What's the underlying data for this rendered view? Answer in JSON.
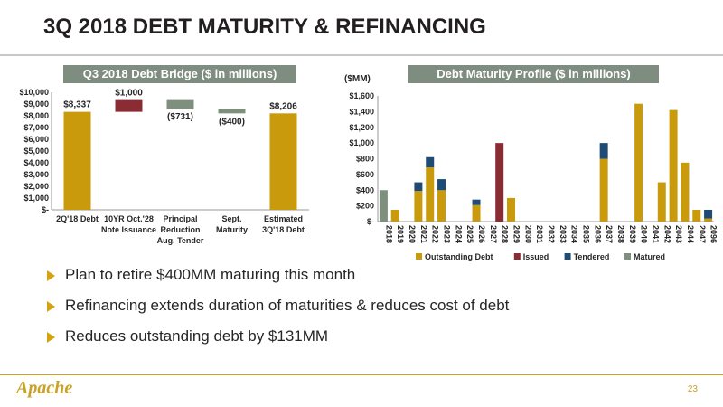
{
  "title": "3Q 2018 DEBT MATURITY & REFINANCING",
  "logo": "Apache",
  "page_number": "23",
  "bullets": [
    "Plan to retire $400MM maturing this month",
    "Refinancing extends duration of maturities & reduces cost of debt",
    "Reduces outstanding debt by $131MM"
  ],
  "chart_data": [
    {
      "type": "bar",
      "subtype": "waterfall",
      "title": "Q3 2018 Debt Bridge ($ in millions)",
      "categories": [
        "2Q'18 Debt",
        "10YR Oct.'28 Note Issuance",
        "Principal Reduction Aug. Tender",
        "Sept. Maturity",
        "Estimated 3Q'18 Debt"
      ],
      "category_lines": [
        [
          "2Q'18 Debt"
        ],
        [
          "10YR Oct.'28",
          "Note Issuance"
        ],
        [
          "Principal",
          "Reduction",
          "Aug. Tender"
        ],
        [
          "Sept.",
          "Maturity"
        ],
        [
          "Estimated",
          "3Q'18 Debt"
        ]
      ],
      "values": [
        8337,
        1000,
        -731,
        -400,
        8206
      ],
      "bar_kind": [
        "total",
        "increase",
        "decrease",
        "decrease",
        "total"
      ],
      "data_labels": [
        "$8,337",
        "$1,000",
        "($731)",
        "($400)",
        "$8,206"
      ],
      "colors": {
        "total": "#c99a0c",
        "increase": "#8b2c35",
        "decrease": "#7e907d"
      },
      "ylim": [
        0,
        10000
      ],
      "yticks": [
        0,
        1000,
        2000,
        3000,
        4000,
        5000,
        6000,
        7000,
        8000,
        9000,
        10000
      ],
      "ytick_labels": [
        "$-",
        "$1,000",
        "$2,000",
        "$3,000",
        "$4,000",
        "$5,000",
        "$6,000",
        "$7,000",
        "$8,000",
        "$9,000",
        "$10,000"
      ]
    },
    {
      "type": "bar",
      "stacked": true,
      "title": "Debt Maturity Profile ($ in millions)",
      "ylabel": "($MM)",
      "categories": [
        "2018",
        "2019",
        "2020",
        "2021",
        "2022",
        "2023",
        "2024",
        "2025",
        "2026",
        "2027",
        "2028",
        "2029",
        "2030",
        "2031",
        "2032",
        "2033",
        "2034",
        "2035",
        "2036",
        "2037",
        "2038",
        "2039",
        "2040",
        "2041",
        "2042",
        "2043",
        "2044",
        "2047",
        "2096"
      ],
      "series": [
        {
          "name": "Outstanding Debt",
          "color": "#c99a0c",
          "values": [
            0,
            150,
            0,
            390,
            690,
            400,
            0,
            0,
            210,
            0,
            0,
            300,
            0,
            0,
            0,
            0,
            0,
            0,
            0,
            800,
            0,
            0,
            1500,
            0,
            500,
            1420,
            750,
            150,
            40
          ]
        },
        {
          "name": "Issued",
          "color": "#8b2c35",
          "values": [
            0,
            0,
            0,
            0,
            0,
            0,
            0,
            0,
            0,
            0,
            1000,
            0,
            0,
            0,
            0,
            0,
            0,
            0,
            0,
            0,
            0,
            0,
            0,
            0,
            0,
            0,
            0,
            0,
            0
          ]
        },
        {
          "name": "Tendered",
          "color": "#1e4c77",
          "values": [
            0,
            0,
            0,
            110,
            130,
            140,
            0,
            0,
            70,
            0,
            0,
            0,
            0,
            0,
            0,
            0,
            0,
            0,
            0,
            200,
            0,
            0,
            0,
            0,
            0,
            0,
            0,
            0,
            110
          ]
        },
        {
          "name": "Matured",
          "color": "#7e907d",
          "values": [
            400,
            0,
            0,
            0,
            0,
            0,
            0,
            0,
            0,
            0,
            0,
            0,
            0,
            0,
            0,
            0,
            0,
            0,
            0,
            0,
            0,
            0,
            0,
            0,
            0,
            0,
            0,
            0,
            0
          ]
        }
      ],
      "ylim": [
        0,
        1600
      ],
      "yticks": [
        0,
        200,
        400,
        600,
        800,
        1000,
        1200,
        1400,
        1600
      ],
      "ytick_labels": [
        "$-",
        "$200",
        "$400",
        "$600",
        "$800",
        "$1,000",
        "$1,200",
        "$1,400",
        "$1,600"
      ],
      "legend_position": "bottom"
    }
  ]
}
